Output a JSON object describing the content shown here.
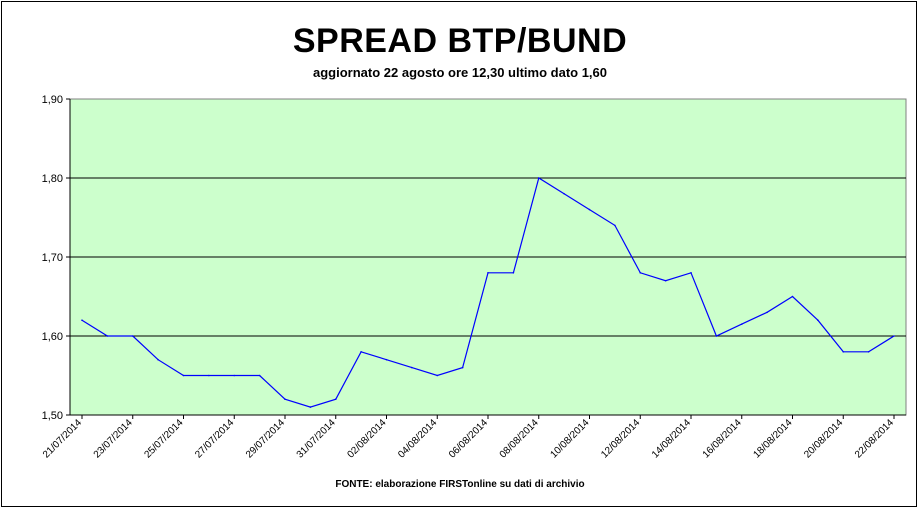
{
  "chart_data": {
    "type": "line",
    "title": "SPREAD BTP/BUND",
    "subtitle": "aggiornato 22 agosto ore 12,30 ultimo dato 1,60",
    "source": "FONTE: elaborazione FIRSTonline su dati di archivio",
    "ylim": [
      1.5,
      1.9
    ],
    "yticks": [
      "1,50",
      "1,60",
      "1,70",
      "1,80",
      "1,90"
    ],
    "xticks": [
      "21/07/2014",
      "23/07/2014",
      "25/07/2014",
      "27/07/2014",
      "29/07/2014",
      "31/07/2014",
      "02/08/2014",
      "04/08/2014",
      "06/08/2014",
      "08/08/2014",
      "10/08/2014",
      "12/08/2014",
      "14/08/2014",
      "16/08/2014",
      "18/08/2014",
      "20/08/2014",
      "22/08/2014"
    ],
    "x_start": "2014-07-21",
    "x_end": "2014-08-22",
    "plot_background": "#ccffcc",
    "line_color": "#0000ff",
    "grid": true,
    "series": [
      {
        "x": [
          "2014-07-21",
          "2014-07-22",
          "2014-07-23",
          "2014-07-24",
          "2014-07-25",
          "2014-07-26",
          "2014-07-27",
          "2014-07-28",
          "2014-07-29",
          "2014-07-30",
          "2014-07-31",
          "2014-08-01",
          "2014-08-02",
          "2014-08-03",
          "2014-08-04",
          "2014-08-05",
          "2014-08-06",
          "2014-08-07",
          "2014-08-08",
          "2014-08-09",
          "2014-08-10",
          "2014-08-11",
          "2014-08-12",
          "2014-08-13",
          "2014-08-14",
          "2014-08-15",
          "2014-08-16",
          "2014-08-17",
          "2014-08-18",
          "2014-08-19",
          "2014-08-20",
          "2014-08-21",
          "2014-08-22"
        ],
        "values": [
          1.62,
          1.6,
          1.6,
          1.57,
          1.55,
          1.55,
          1.55,
          1.55,
          1.52,
          1.51,
          1.52,
          1.58,
          1.57,
          1.56,
          1.55,
          1.56,
          1.68,
          1.68,
          1.8,
          1.78,
          1.76,
          1.74,
          1.68,
          1.67,
          1.68,
          1.6,
          1.615,
          1.63,
          1.65,
          1.62,
          1.58,
          1.58,
          1.6
        ]
      }
    ]
  }
}
